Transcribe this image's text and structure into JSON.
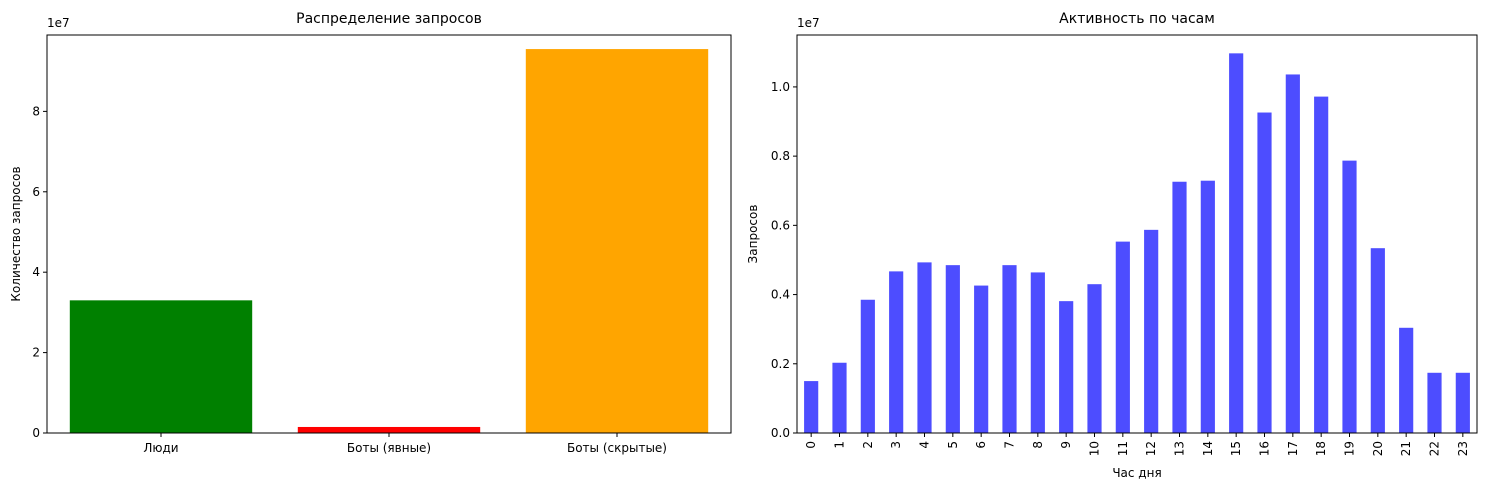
{
  "chart_data": [
    {
      "type": "bar",
      "title": "Распределение запросов",
      "xlabel": "",
      "ylabel": "Количество запросов",
      "scale_note": "1e7",
      "categories": [
        "Люди",
        "Боты (явные)",
        "Боты (скрытые)"
      ],
      "values": [
        3.3,
        0.15,
        9.55
      ],
      "colors": [
        "#008000",
        "#ff0000",
        "#ffa500"
      ],
      "ylim": [
        0,
        9.9
      ],
      "yticks": [
        0,
        2,
        4,
        6,
        8
      ],
      "ytick_labels": [
        "0",
        "2",
        "4",
        "6",
        "8"
      ],
      "grid": false
    },
    {
      "type": "bar",
      "title": "Активность по часам",
      "xlabel": "Час дня",
      "ylabel": "Запросов",
      "scale_note": "1e7",
      "categories": [
        "0",
        "1",
        "2",
        "3",
        "4",
        "5",
        "6",
        "7",
        "8",
        "9",
        "10",
        "11",
        "12",
        "13",
        "14",
        "15",
        "16",
        "17",
        "18",
        "19",
        "20",
        "21",
        "22",
        "23"
      ],
      "values": [
        0.15,
        0.203,
        0.385,
        0.467,
        0.493,
        0.485,
        0.426,
        0.485,
        0.464,
        0.381,
        0.43,
        0.553,
        0.587,
        0.726,
        0.729,
        1.097,
        0.926,
        1.036,
        0.972,
        0.787,
        0.534,
        0.304,
        0.174,
        0.174
      ],
      "colors": [
        "#4d4dff"
      ],
      "ylim": [
        0,
        1.15
      ],
      "yticks": [
        0,
        0.2,
        0.4,
        0.6,
        0.8,
        1.0
      ],
      "ytick_labels": [
        "0.0",
        "0.2",
        "0.4",
        "0.6",
        "0.8",
        "1.0"
      ],
      "grid": false
    }
  ]
}
